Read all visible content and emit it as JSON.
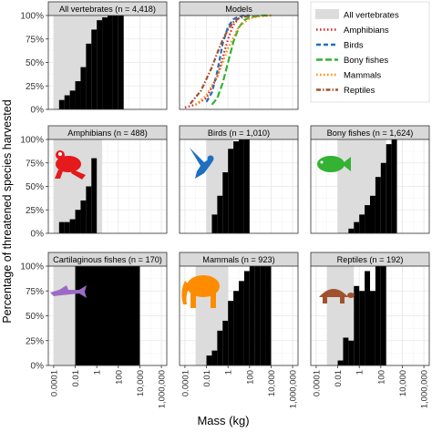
{
  "figure": {
    "ylabel": "Percentage of threatened species harvested",
    "xlabel": "Mass (kg)",
    "y_ticks": [
      "0%",
      "25%",
      "50%",
      "75%",
      "100%"
    ],
    "x_ticks": [
      "0.0001",
      "0.01",
      "1",
      "100",
      "10,000",
      "1,000,000"
    ],
    "legend": [
      {
        "label": "All vertebrates",
        "color": "#dcdcdc",
        "style": "fill"
      },
      {
        "label": "Amphibians",
        "color": "#e41a1c",
        "style": "dotted"
      },
      {
        "label": "Birds",
        "color": "#1f6fc0",
        "style": "dashed"
      },
      {
        "label": "Bony fishes",
        "color": "#33b233",
        "style": "longdash"
      },
      {
        "label": "Mammals",
        "color": "#ff8c00",
        "style": "dotted"
      },
      {
        "label": "Reptiles",
        "color": "#a0522d",
        "style": "dashdot"
      }
    ],
    "colors": {
      "bars": "#000000",
      "shade": "#dcdcdc",
      "strip": "#d9d9d9",
      "grid": "#e6e6e6",
      "panel_border": "#333333"
    },
    "icons": {
      "amphibians": "frog-icon",
      "birds": "bird-icon",
      "bony_fishes": "fish-icon",
      "cartilaginous_fishes": "shark-icon",
      "mammals": "elephant-icon",
      "reptiles": "tortoise-icon"
    }
  },
  "chart_data": [
    {
      "type": "bar",
      "title": "All vertebrates (n = 4,418)",
      "x_log10_bin_edges": [
        -4,
        -3.5,
        -3,
        -2.5,
        -2,
        -1.5,
        -1,
        -0.5,
        0,
        0.5,
        1,
        1.5,
        2,
        2.5,
        3,
        3.5,
        4,
        4.5,
        5,
        5.5,
        6
      ],
      "values": [
        null,
        0.1,
        0.15,
        0.2,
        0.3,
        0.45,
        0.7,
        0.85,
        0.95,
        0.98,
        1.0,
        1.0,
        1.0,
        null,
        null,
        null,
        null,
        null,
        null,
        null
      ],
      "shade_x_range_log10": [
        -4,
        1.5
      ],
      "ylim": [
        0,
        1
      ]
    },
    {
      "type": "line",
      "title": "Models",
      "series": [
        {
          "name": "Amphibians",
          "x_log10": [
            -4,
            -3,
            -2,
            -1,
            0,
            0.5,
            1,
            1.5,
            2
          ],
          "values": [
            0.02,
            0.05,
            0.12,
            0.35,
            0.75,
            0.9,
            0.97,
            0.99,
            1.0
          ]
        },
        {
          "name": "Birds",
          "x_log10": [
            -2,
            -1.5,
            -1,
            -0.5,
            0,
            0.5,
            1,
            1.5,
            2
          ],
          "values": [
            0.08,
            0.18,
            0.4,
            0.7,
            0.88,
            0.96,
            0.99,
            1.0,
            1.0
          ]
        },
        {
          "name": "Bony fishes",
          "x_log10": [
            -1.5,
            -1,
            -0.5,
            0,
            0.5,
            1,
            1.5,
            2,
            3,
            4
          ],
          "values": [
            0.05,
            0.12,
            0.28,
            0.5,
            0.72,
            0.87,
            0.95,
            0.98,
            1.0,
            1.0
          ]
        },
        {
          "name": "Mammals",
          "x_log10": [
            -3,
            -2,
            -1,
            0,
            1,
            2,
            3,
            4
          ],
          "values": [
            0.05,
            0.15,
            0.35,
            0.65,
            0.88,
            0.97,
            0.99,
            1.0
          ]
        },
        {
          "name": "Reptiles",
          "x_log10": [
            -3.5,
            -2.5,
            -1.5,
            -1,
            -0.5,
            0,
            0.5,
            1,
            2
          ],
          "values": [
            0.06,
            0.2,
            0.45,
            0.6,
            0.74,
            0.85,
            0.93,
            0.97,
            1.0
          ]
        }
      ],
      "ylim": [
        0,
        1
      ]
    },
    {
      "type": "bar",
      "title": "Amphibians (n = 488)",
      "x_log10_bin_edges": [
        -4,
        -3.5,
        -3,
        -2.5,
        -2,
        -1.5,
        -1,
        -0.5,
        0,
        0.5,
        1
      ],
      "values": [
        null,
        0.12,
        0.12,
        0.15,
        0.25,
        0.35,
        0.5,
        0.8,
        null,
        null
      ],
      "shade_x_range_log10": [
        -4,
        0.5
      ],
      "ylim": [
        0,
        1
      ]
    },
    {
      "type": "bar",
      "title": "Birds (n = 1,010)",
      "x_log10_bin_edges": [
        -2,
        -1.5,
        -1,
        -0.5,
        0,
        0.5,
        1,
        1.5,
        2,
        2.5
      ],
      "values": [
        null,
        0.2,
        0.4,
        0.65,
        0.9,
        0.98,
        1.0,
        1.0,
        null
      ],
      "shade_x_range_log10": [
        -2,
        0.5
      ],
      "ylim": [
        0,
        1
      ]
    },
    {
      "type": "bar",
      "title": "Bony fishes (n = 1,624)",
      "x_log10_bin_edges": [
        -2,
        -1.5,
        -1,
        -0.5,
        0,
        0.5,
        1,
        1.5,
        2,
        2.5,
        3,
        3.5,
        4
      ],
      "values": [
        null,
        null,
        0.05,
        0.12,
        0.2,
        0.3,
        0.4,
        0.6,
        0.75,
        0.95,
        1.0,
        null
      ],
      "shade_x_range_log10": [
        -2,
        2.5
      ],
      "ylim": [
        0,
        1
      ]
    },
    {
      "type": "bar",
      "title": "Cartilaginous fishes (n = 170)",
      "x_log10_bin_edges": [
        -2,
        4
      ],
      "values": [
        1.0
      ],
      "shade_x_range_log10": [
        -4,
        -2
      ],
      "ylim": [
        0,
        1
      ]
    },
    {
      "type": "bar",
      "title": "Mammals (n = 923)",
      "x_log10_bin_edges": [
        -2.5,
        -2,
        -1.5,
        -1,
        -0.5,
        0,
        0.5,
        1,
        1.5,
        2,
        2.5,
        3,
        3.5,
        4,
        4.5
      ],
      "values": [
        null,
        0.1,
        0.15,
        0.35,
        0.45,
        0.65,
        0.75,
        0.85,
        0.95,
        1.0,
        1.0,
        1.0,
        1.0,
        null
      ],
      "shade_x_range_log10": [
        -3,
        0
      ],
      "ylim": [
        0,
        1
      ]
    },
    {
      "type": "bar",
      "title": "Reptiles (n = 192)",
      "x_log10_bin_edges": [
        -2.5,
        -2,
        -1.5,
        -1,
        -0.5,
        0,
        0.5,
        1,
        1.5,
        2,
        2.5,
        3
      ],
      "values": [
        null,
        0.05,
        0.28,
        0.25,
        0.8,
        0.75,
        0.95,
        0.75,
        1.0,
        1.0,
        null
      ],
      "shade_x_range_log10": [
        -3,
        -0.5
      ],
      "ylim": [
        0,
        1
      ]
    }
  ]
}
